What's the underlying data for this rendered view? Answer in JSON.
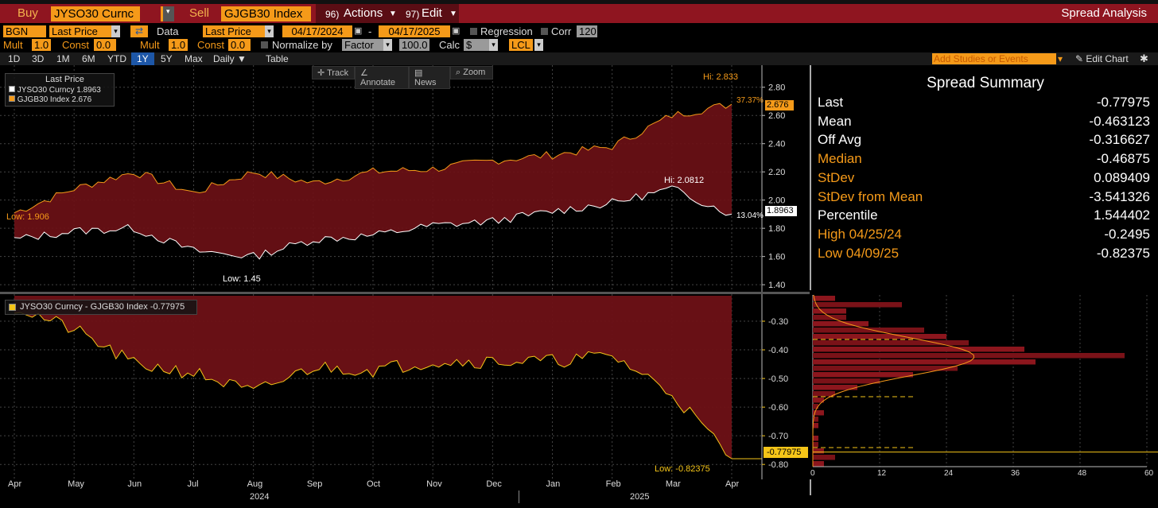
{
  "toolbar": {
    "buy_label": "Buy",
    "buy_ticker": "JYSO30 Curnc",
    "sell_label": "Sell",
    "sell_ticker": "GJGB30 Index",
    "actions_num": "96)",
    "actions_label": "Actions",
    "edit_num": "97)",
    "edit_label": "Edit",
    "title": "Spread Analysis"
  },
  "settings": {
    "source": "BGN",
    "field1": "Last Price",
    "data_label": "Data",
    "field2": "Last Price",
    "start_date": "04/17/2024",
    "end_date": "04/17/2025",
    "regression_label": "Regression",
    "corr_label": "Corr",
    "corr_value": "120",
    "mult1_label": "Mult",
    "mult1_value": "1.0",
    "const1_label": "Const",
    "const1_value": "0.0",
    "mult2_label": "Mult",
    "mult2_value": "1.0",
    "const2_label": "Const",
    "const2_value": "0.0",
    "normalize_label": "Normalize by",
    "normalize_value": "Factor",
    "factor_value": "100.0",
    "calc_label": "Calc",
    "calc_value": "$",
    "currency": "LCL"
  },
  "periods": {
    "tabs": [
      "1D",
      "3D",
      "1M",
      "6M",
      "YTD",
      "1Y",
      "5Y",
      "Max"
    ],
    "active": "1Y",
    "frequency": "Daily ▼",
    "table_label": "Table",
    "studies_placeholder": "Add Studies or Events",
    "edit_chart_label": "Edit Chart"
  },
  "chart_tools": [
    "Track",
    "Annotate",
    "News",
    "Zoom"
  ],
  "legend_top": {
    "title": "Last Price",
    "items": [
      {
        "label": "JYSO30 Curncy",
        "value": "1.8963",
        "color": "#ffffff"
      },
      {
        "label": "GJGB30 Index",
        "value": "2.676",
        "color": "#f59a19"
      }
    ]
  },
  "legend_bottom": {
    "label": "JYSO30 Curncy - GJGB30 Index -0.77975",
    "color": "#f5c518"
  },
  "top_annotations": {
    "hi_orange": "Hi: 2.833",
    "pct_orange": "37.37%",
    "last_orange": "2.676",
    "low_orange": "Low: 1.906",
    "hi_white": "Hi: 2.0812",
    "pct_white": "13.04%",
    "last_white": "1.8963",
    "low_white": "Low: 1.45"
  },
  "bottom_annotations": {
    "low": "Low: -0.82375",
    "last": "-0.77975"
  },
  "summary": {
    "title": "Spread Summary",
    "rows": [
      {
        "key": "Last",
        "value": "-0.77975",
        "style": "white"
      },
      {
        "key": "Mean",
        "value": "-0.463123",
        "style": "white"
      },
      {
        "key": "Off Avg",
        "value": "-0.316627",
        "style": "white"
      },
      {
        "key": "Median",
        "value": "-0.46875",
        "style": "orange"
      },
      {
        "key": "StDev",
        "value": "0.089409",
        "style": "orange"
      },
      {
        "key": "StDev from Mean",
        "value": "-3.541326",
        "style": "orange"
      },
      {
        "key": "Percentile",
        "value": "1.544402",
        "style": "white"
      },
      {
        "key": "High 04/25/24",
        "value": "-0.2495",
        "style": "orange"
      },
      {
        "key": "Low 04/09/25",
        "value": "-0.82375",
        "style": "orange"
      }
    ]
  },
  "x_axis": {
    "months": [
      "Apr",
      "May",
      "Jun",
      "Jul",
      "Aug",
      "Sep",
      "Oct",
      "Nov",
      "Dec",
      "Jan",
      "Feb",
      "Mar",
      "Apr"
    ],
    "years": [
      "2024",
      "2025"
    ]
  },
  "chart_data": [
    {
      "type": "area",
      "title": "",
      "x": [
        "Apr",
        "May",
        "Jun",
        "Jul",
        "Aug",
        "Sep",
        "Oct",
        "Nov",
        "Dec",
        "Jan",
        "Feb",
        "Mar",
        "Apr"
      ],
      "ylim": [
        1.35,
        2.9
      ],
      "yticks": [
        "2.80",
        "2.60",
        "2.40",
        "2.20",
        "2.00",
        "1.80",
        "1.60",
        "1.40"
      ],
      "series": [
        {
          "name": "GJGB30 Index",
          "color": "#f59a19",
          "values": [
            1.91,
            2.08,
            2.2,
            2.05,
            2.2,
            2.12,
            2.2,
            2.22,
            2.28,
            2.32,
            2.38,
            2.6,
            2.68
          ]
        },
        {
          "name": "JYSO30 Curncy",
          "color": "#ffffff",
          "values": [
            1.72,
            1.78,
            1.8,
            1.64,
            1.6,
            1.72,
            1.75,
            1.82,
            1.85,
            1.92,
            1.98,
            2.08,
            1.9
          ]
        }
      ]
    },
    {
      "type": "area",
      "title": "JYSO30 Curncy - GJGB30 Index",
      "x": [
        "Apr",
        "May",
        "Jun",
        "Jul",
        "Aug",
        "Sep",
        "Oct",
        "Nov",
        "Dec",
        "Jan",
        "Feb",
        "Mar",
        "Apr"
      ],
      "ylim": [
        -0.83,
        -0.25
      ],
      "yticks": [
        "-0.30",
        "-0.40",
        "-0.50",
        "-0.60",
        "-0.70",
        "-0.80"
      ],
      "series": [
        {
          "name": "JYSO30 Curncy - GJGB30 Index",
          "color": "#f5c518",
          "values": [
            -0.25,
            -0.33,
            -0.45,
            -0.48,
            -0.55,
            -0.46,
            -0.47,
            -0.44,
            -0.44,
            -0.44,
            -0.42,
            -0.55,
            -0.78
          ]
        }
      ]
    },
    {
      "type": "bar",
      "title": "",
      "xticks": [
        "0",
        "12",
        "24",
        "36",
        "48",
        "60"
      ],
      "xlim": [
        0,
        60
      ],
      "categories": [
        -0.29,
        -0.31,
        -0.33,
        -0.35,
        -0.37,
        -0.39,
        -0.41,
        -0.43,
        -0.45,
        -0.47,
        -0.49,
        -0.51,
        -0.53,
        -0.55,
        -0.57,
        -0.59,
        -0.61,
        -0.63,
        -0.65,
        -0.67,
        -0.69,
        -0.71,
        -0.73,
        -0.75,
        -0.77,
        -0.79,
        -0.81
      ],
      "values": [
        4,
        16,
        6,
        6,
        10,
        20,
        24,
        28,
        38,
        56,
        40,
        26,
        18,
        12,
        8,
        4,
        2,
        1,
        2,
        1,
        1,
        0,
        1,
        1,
        2,
        4,
        2
      ]
    }
  ]
}
